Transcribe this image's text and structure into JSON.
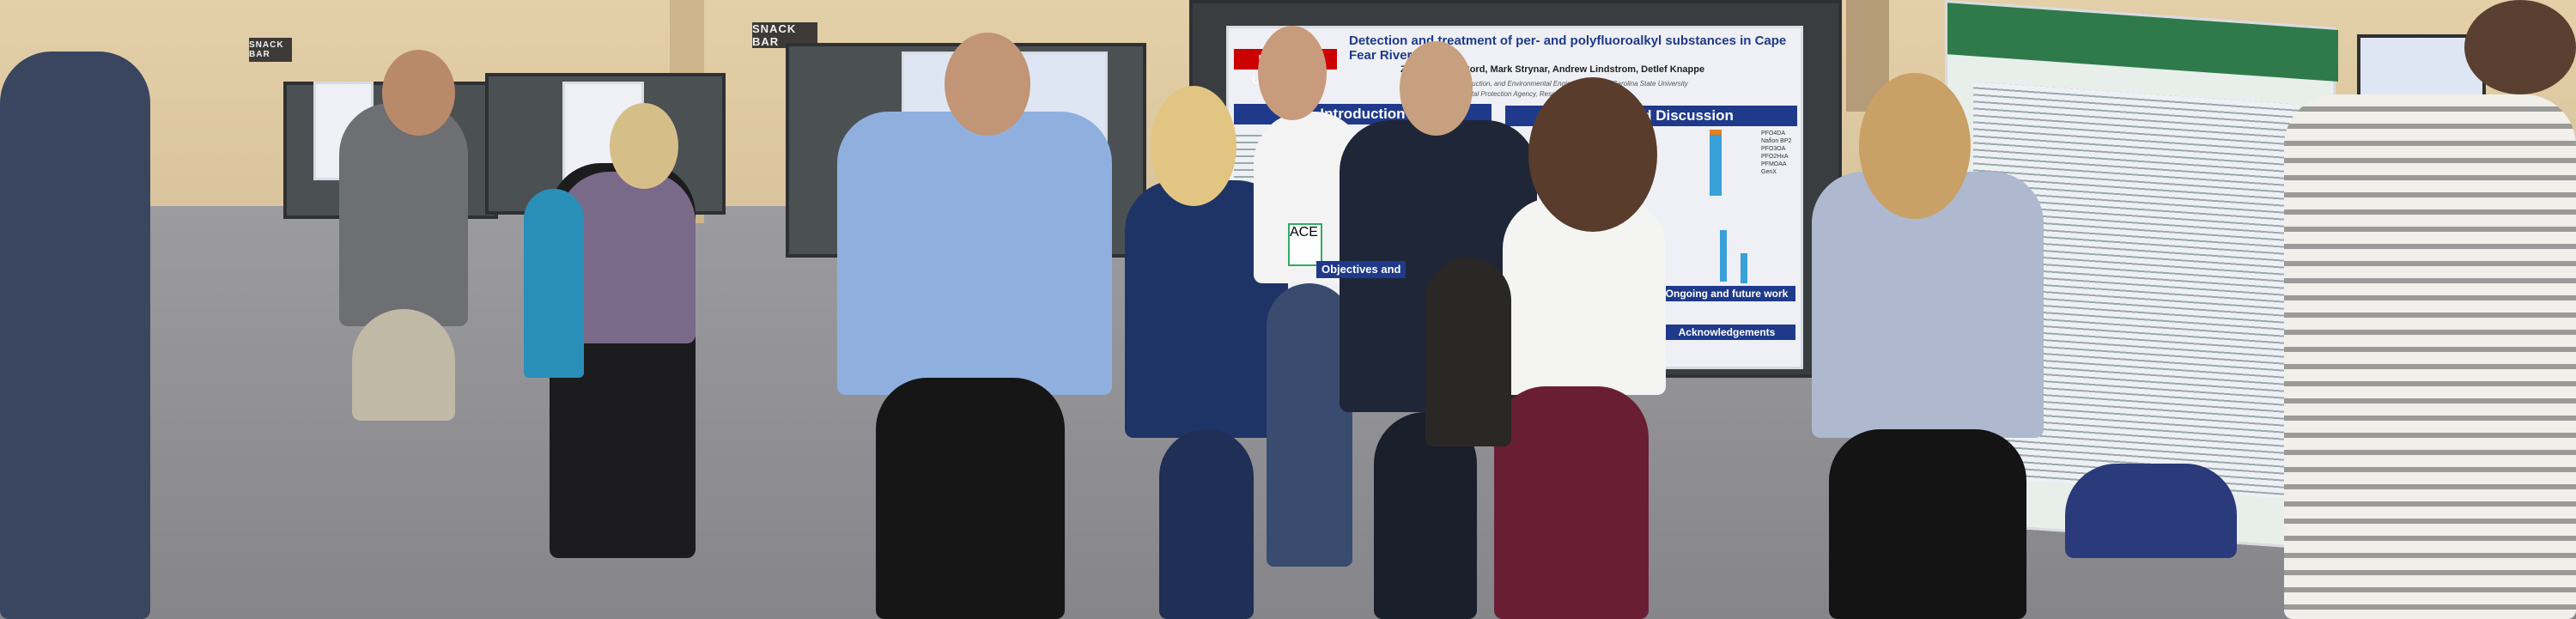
{
  "signs": [
    "SNACK BAR",
    "SNACK BAR"
  ],
  "main_poster": {
    "university": "NC STATE UNIVERSITY",
    "title": "Detection and treatment of per- and polyfluoroalkyl substances in Cape Fear River water",
    "authors": "Zachary ... McCord, Mark Strynar, Andrew Lindstrom, Detlef Knappe",
    "affiliation1": "Civil, Construction, and Environmental Engineering, North Carolina State University",
    "affiliation2": "Environmental Protection Agency, Research Triangle Park, NC",
    "sections": [
      "Introduction",
      "Results and Discussion",
      "Objectives and",
      "Ongoing and future work",
      "Acknowledgements"
    ],
    "legend": [
      "PFO4DA",
      "Nafion BP2",
      "PFO3OA",
      "PFO2HxA",
      "PFMOAA",
      "GenX"
    ]
  },
  "badge": "ACE",
  "colors": {
    "wall": "#e3cfa8",
    "floor": "#8f8f92",
    "poster_header": "#1f3a8a",
    "ncsu_red": "#cc0000"
  }
}
